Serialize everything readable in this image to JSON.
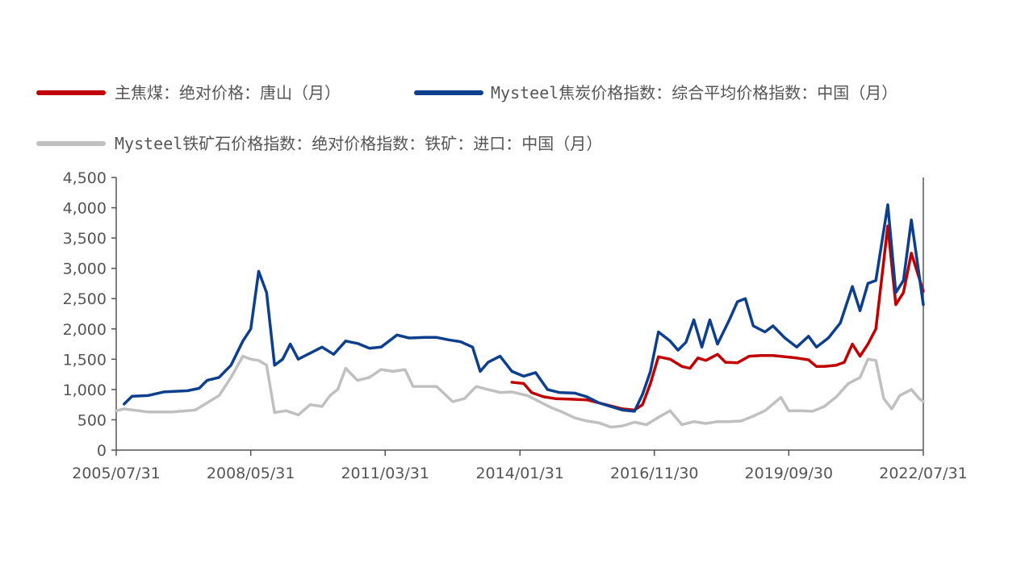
{
  "chart_data": {
    "type": "line",
    "title": "",
    "xlabel": "",
    "ylabel": "",
    "ylim": [
      0,
      4500
    ],
    "yticks": [
      0,
      500,
      1000,
      1500,
      2000,
      2500,
      3000,
      3500,
      4000,
      4500
    ],
    "ytick_labels": [
      "0",
      "500",
      "1,000",
      "1,500",
      "2,000",
      "2,500",
      "3,000",
      "3,500",
      "4,000",
      "4,500"
    ],
    "xlim": [
      "2005-07-31",
      "2022-07-31"
    ],
    "xtick_labels": [
      "2005/07/31",
      "2008/05/31",
      "2011/03/31",
      "2014/01/31",
      "2016/11/30",
      "2019/09/30",
      "2022/07/31"
    ],
    "xtick_dates": [
      "2005-07-31",
      "2008-05-31",
      "2011-03-31",
      "2014-01-31",
      "2016-11-30",
      "2019-09-30",
      "2022-07-31"
    ],
    "grid": false,
    "legend_position": "top",
    "series": [
      {
        "name": "主焦煤：绝对价格：唐山（月）",
        "color": "#c00000",
        "points": [
          [
            "2013-11-30",
            1120
          ],
          [
            "2014-02-28",
            1100
          ],
          [
            "2014-04-30",
            950
          ],
          [
            "2014-07-31",
            880
          ],
          [
            "2014-10-31",
            850
          ],
          [
            "2015-02-28",
            840
          ],
          [
            "2015-06-30",
            830
          ],
          [
            "2015-09-30",
            780
          ],
          [
            "2015-12-31",
            730
          ],
          [
            "2016-03-31",
            680
          ],
          [
            "2016-06-30",
            660
          ],
          [
            "2016-08-31",
            750
          ],
          [
            "2016-10-31",
            1100
          ],
          [
            "2016-12-31",
            1540
          ],
          [
            "2017-03-31",
            1500
          ],
          [
            "2017-06-30",
            1380
          ],
          [
            "2017-08-31",
            1350
          ],
          [
            "2017-10-31",
            1520
          ],
          [
            "2017-12-31",
            1480
          ],
          [
            "2018-03-31",
            1580
          ],
          [
            "2018-05-31",
            1450
          ],
          [
            "2018-08-31",
            1440
          ],
          [
            "2018-11-30",
            1550
          ],
          [
            "2019-02-28",
            1560
          ],
          [
            "2019-05-31",
            1560
          ],
          [
            "2019-08-31",
            1540
          ],
          [
            "2019-11-30",
            1520
          ],
          [
            "2020-02-29",
            1490
          ],
          [
            "2020-04-30",
            1380
          ],
          [
            "2020-06-30",
            1380
          ],
          [
            "2020-09-30",
            1400
          ],
          [
            "2020-11-30",
            1450
          ],
          [
            "2021-01-31",
            1750
          ],
          [
            "2021-03-31",
            1550
          ],
          [
            "2021-05-31",
            1750
          ],
          [
            "2021-07-31",
            2000
          ],
          [
            "2021-10-31",
            3700
          ],
          [
            "2021-12-31",
            2400
          ],
          [
            "2022-02-28",
            2600
          ],
          [
            "2022-04-30",
            3250
          ],
          [
            "2022-07-31",
            2620
          ]
        ]
      },
      {
        "name": "Mysteel焦炭价格指数：综合平均价格指数：中国（月）",
        "color": "#0d3f8c",
        "points": [
          [
            "2005-09-30",
            760
          ],
          [
            "2005-11-30",
            890
          ],
          [
            "2006-03-31",
            900
          ],
          [
            "2006-07-31",
            960
          ],
          [
            "2007-01-31",
            980
          ],
          [
            "2007-04-30",
            1020
          ],
          [
            "2007-06-30",
            1150
          ],
          [
            "2007-09-30",
            1200
          ],
          [
            "2007-12-31",
            1400
          ],
          [
            "2008-03-31",
            1800
          ],
          [
            "2008-05-31",
            2000
          ],
          [
            "2008-07-31",
            2950
          ],
          [
            "2008-09-30",
            2600
          ],
          [
            "2008-11-30",
            1400
          ],
          [
            "2009-01-31",
            1500
          ],
          [
            "2009-03-31",
            1750
          ],
          [
            "2009-05-31",
            1500
          ],
          [
            "2009-08-31",
            1600
          ],
          [
            "2009-11-30",
            1700
          ],
          [
            "2010-02-28",
            1580
          ],
          [
            "2010-05-31",
            1800
          ],
          [
            "2010-08-31",
            1760
          ],
          [
            "2010-11-30",
            1680
          ],
          [
            "2011-02-28",
            1700
          ],
          [
            "2011-06-30",
            1900
          ],
          [
            "2011-09-30",
            1850
          ],
          [
            "2012-01-31",
            1860
          ],
          [
            "2012-04-30",
            1860
          ],
          [
            "2012-07-31",
            1820
          ],
          [
            "2012-10-31",
            1790
          ],
          [
            "2013-01-31",
            1700
          ],
          [
            "2013-03-31",
            1300
          ],
          [
            "2013-05-31",
            1450
          ],
          [
            "2013-08-31",
            1550
          ],
          [
            "2013-11-30",
            1300
          ],
          [
            "2014-02-28",
            1220
          ],
          [
            "2014-05-31",
            1280
          ],
          [
            "2014-08-31",
            1000
          ],
          [
            "2014-11-30",
            950
          ],
          [
            "2015-03-31",
            940
          ],
          [
            "2015-06-30",
            880
          ],
          [
            "2015-09-30",
            780
          ],
          [
            "2015-12-31",
            720
          ],
          [
            "2016-03-31",
            660
          ],
          [
            "2016-06-30",
            640
          ],
          [
            "2016-08-31",
            920
          ],
          [
            "2016-10-31",
            1300
          ],
          [
            "2016-12-31",
            1950
          ],
          [
            "2017-03-31",
            1800
          ],
          [
            "2017-05-31",
            1650
          ],
          [
            "2017-07-31",
            1780
          ],
          [
            "2017-09-30",
            2150
          ],
          [
            "2017-11-30",
            1700
          ],
          [
            "2018-01-31",
            2150
          ],
          [
            "2018-03-31",
            1750
          ],
          [
            "2018-06-30",
            2150
          ],
          [
            "2018-08-31",
            2450
          ],
          [
            "2018-10-31",
            2500
          ],
          [
            "2018-12-31",
            2050
          ],
          [
            "2019-03-31",
            1950
          ],
          [
            "2019-05-31",
            2050
          ],
          [
            "2019-08-31",
            1850
          ],
          [
            "2019-11-30",
            1700
          ],
          [
            "2020-02-29",
            1880
          ],
          [
            "2020-04-30",
            1700
          ],
          [
            "2020-07-31",
            1850
          ],
          [
            "2020-10-31",
            2100
          ],
          [
            "2021-01-31",
            2700
          ],
          [
            "2021-03-31",
            2300
          ],
          [
            "2021-05-31",
            2750
          ],
          [
            "2021-07-31",
            2800
          ],
          [
            "2021-10-31",
            4050
          ],
          [
            "2021-12-31",
            2600
          ],
          [
            "2022-02-28",
            2800
          ],
          [
            "2022-04-30",
            3800
          ],
          [
            "2022-07-31",
            2400
          ]
        ]
      },
      {
        "name": "Mysteel铁矿石价格指数：绝对价格指数：铁矿：进口：中国（月）",
        "color": "#c0c0c0",
        "points": [
          [
            "2005-07-31",
            650
          ],
          [
            "2005-09-30",
            680
          ],
          [
            "2006-03-31",
            630
          ],
          [
            "2006-09-30",
            630
          ],
          [
            "2007-03-31",
            660
          ],
          [
            "2007-06-30",
            780
          ],
          [
            "2007-09-30",
            900
          ],
          [
            "2007-12-31",
            1200
          ],
          [
            "2008-03-31",
            1550
          ],
          [
            "2008-05-31",
            1500
          ],
          [
            "2008-07-31",
            1480
          ],
          [
            "2008-09-30",
            1400
          ],
          [
            "2008-11-30",
            620
          ],
          [
            "2009-02-28",
            650
          ],
          [
            "2009-05-31",
            580
          ],
          [
            "2009-08-31",
            750
          ],
          [
            "2009-11-30",
            720
          ],
          [
            "2010-01-31",
            900
          ],
          [
            "2010-03-31",
            1000
          ],
          [
            "2010-05-31",
            1350
          ],
          [
            "2010-08-31",
            1150
          ],
          [
            "2010-11-30",
            1200
          ],
          [
            "2011-02-28",
            1330
          ],
          [
            "2011-05-31",
            1300
          ],
          [
            "2011-08-31",
            1330
          ],
          [
            "2011-10-31",
            1050
          ],
          [
            "2012-01-31",
            1050
          ],
          [
            "2012-04-30",
            1050
          ],
          [
            "2012-08-31",
            800
          ],
          [
            "2012-11-30",
            850
          ],
          [
            "2013-02-28",
            1050
          ],
          [
            "2013-05-31",
            1000
          ],
          [
            "2013-08-31",
            950
          ],
          [
            "2013-11-30",
            960
          ],
          [
            "2014-03-31",
            900
          ],
          [
            "2014-06-30",
            800
          ],
          [
            "2014-09-30",
            700
          ],
          [
            "2014-12-31",
            620
          ],
          [
            "2015-03-31",
            530
          ],
          [
            "2015-06-30",
            480
          ],
          [
            "2015-09-30",
            450
          ],
          [
            "2015-12-31",
            380
          ],
          [
            "2016-03-31",
            400
          ],
          [
            "2016-06-30",
            460
          ],
          [
            "2016-09-30",
            420
          ],
          [
            "2016-12-31",
            540
          ],
          [
            "2017-03-31",
            650
          ],
          [
            "2017-06-30",
            420
          ],
          [
            "2017-09-30",
            470
          ],
          [
            "2017-12-31",
            440
          ],
          [
            "2018-03-31",
            470
          ],
          [
            "2018-06-30",
            470
          ],
          [
            "2018-09-30",
            480
          ],
          [
            "2018-12-31",
            560
          ],
          [
            "2019-03-31",
            650
          ],
          [
            "2019-07-31",
            870
          ],
          [
            "2019-09-30",
            650
          ],
          [
            "2019-12-31",
            650
          ],
          [
            "2020-03-31",
            640
          ],
          [
            "2020-06-30",
            720
          ],
          [
            "2020-09-30",
            880
          ],
          [
            "2020-12-31",
            1100
          ],
          [
            "2021-03-31",
            1200
          ],
          [
            "2021-05-31",
            1500
          ],
          [
            "2021-07-31",
            1480
          ],
          [
            "2021-09-30",
            850
          ],
          [
            "2021-11-30",
            680
          ],
          [
            "2022-01-31",
            900
          ],
          [
            "2022-04-30",
            1000
          ],
          [
            "2022-06-30",
            850
          ],
          [
            "2022-07-31",
            800
          ]
        ]
      }
    ]
  }
}
